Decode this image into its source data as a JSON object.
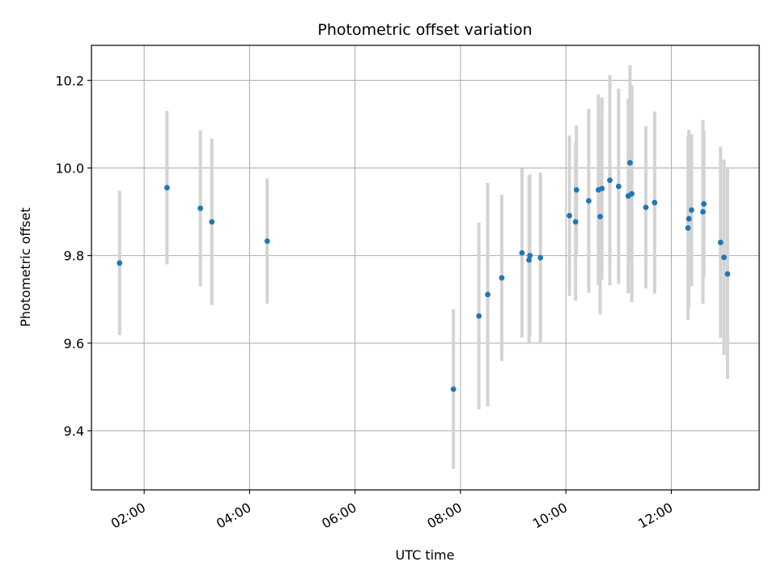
{
  "chart_data": {
    "type": "scatter",
    "title": "Photometric offset variation",
    "xlabel": "UTC time",
    "ylabel": "Photometric offset",
    "x_unit": "UTC hours",
    "xlim": [
      "01:00",
      "13:40"
    ],
    "ylim": [
      9.265,
      10.28
    ],
    "grid": true,
    "x_ticks": [
      "02:00",
      "04:00",
      "06:00",
      "08:00",
      "10:00",
      "12:00"
    ],
    "y_ticks": [
      "9.4",
      "9.6",
      "9.8",
      "10.0",
      "10.2"
    ],
    "colors": {
      "marker": "#1f77b4",
      "errorbar": "#d3d3d3",
      "grid": "#b0b0b0"
    },
    "points": [
      {
        "x": "01:32",
        "y": 9.783,
        "err": 0.165
      },
      {
        "x": "02:26",
        "y": 9.955,
        "err": 0.175
      },
      {
        "x": "03:04",
        "y": 9.908,
        "err": 0.178
      },
      {
        "x": "03:17",
        "y": 9.877,
        "err": 0.19
      },
      {
        "x": "04:20",
        "y": 9.833,
        "err": 0.143
      },
      {
        "x": "07:52",
        "y": 9.495,
        "err": 0.182
      },
      {
        "x": "08:21",
        "y": 9.662,
        "err": 0.213
      },
      {
        "x": "08:31",
        "y": 9.711,
        "err": 0.255
      },
      {
        "x": "08:47",
        "y": 9.749,
        "err": 0.19
      },
      {
        "x": "09:10",
        "y": 9.806,
        "err": 0.193
      },
      {
        "x": "09:18",
        "y": 9.79,
        "err": 0.19
      },
      {
        "x": "09:19",
        "y": 9.8,
        "err": 0.185
      },
      {
        "x": "09:31",
        "y": 9.795,
        "err": 0.195
      },
      {
        "x": "10:04",
        "y": 9.891,
        "err": 0.183
      },
      {
        "x": "10:11",
        "y": 9.877,
        "err": 0.18
      },
      {
        "x": "10:12",
        "y": 9.95,
        "err": 0.147
      },
      {
        "x": "10:26",
        "y": 9.925,
        "err": 0.21
      },
      {
        "x": "10:37",
        "y": 9.95,
        "err": 0.218
      },
      {
        "x": "10:39",
        "y": 9.889,
        "err": 0.223
      },
      {
        "x": "10:41",
        "y": 9.953,
        "err": 0.208
      },
      {
        "x": "10:50",
        "y": 9.972,
        "err": 0.24
      },
      {
        "x": "11:00",
        "y": 9.958,
        "err": 0.223
      },
      {
        "x": "11:11",
        "y": 9.936,
        "err": 0.222
      },
      {
        "x": "11:13",
        "y": 10.012,
        "err": 0.223
      },
      {
        "x": "11:15",
        "y": 9.941,
        "err": 0.247
      },
      {
        "x": "11:31",
        "y": 9.91,
        "err": 0.185
      },
      {
        "x": "11:41",
        "y": 9.921,
        "err": 0.208
      },
      {
        "x": "12:19",
        "y": 9.863,
        "err": 0.21
      },
      {
        "x": "12:20",
        "y": 9.884,
        "err": 0.203
      },
      {
        "x": "12:23",
        "y": 9.904,
        "err": 0.173
      },
      {
        "x": "12:36",
        "y": 9.9,
        "err": 0.21
      },
      {
        "x": "12:37",
        "y": 9.918,
        "err": 0.167
      },
      {
        "x": "12:56",
        "y": 9.83,
        "err": 0.218
      },
      {
        "x": "13:00",
        "y": 9.796,
        "err": 0.223
      },
      {
        "x": "13:04",
        "y": 9.758,
        "err": 0.24
      }
    ]
  }
}
